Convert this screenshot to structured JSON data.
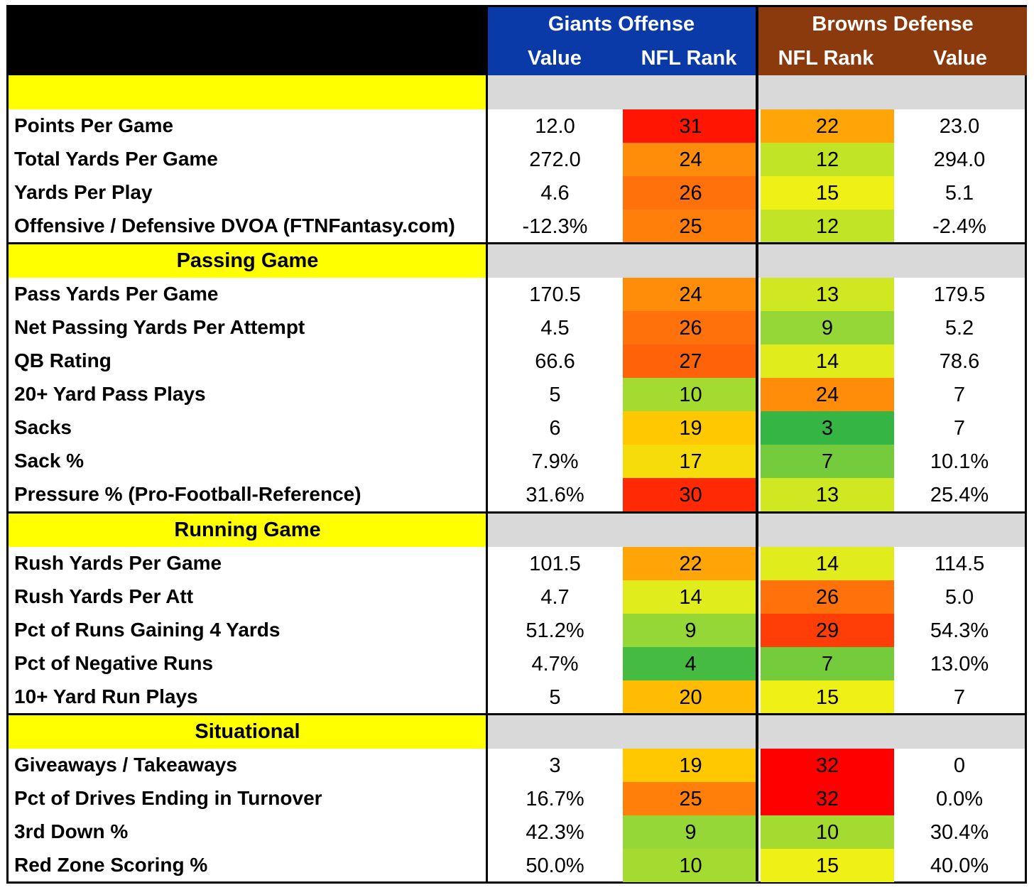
{
  "header": {
    "offense_title": "Giants Offense",
    "defense_title": "Browns Defense",
    "col_off_value": "Value",
    "col_off_rank": "NFL Rank",
    "col_def_rank": "NFL Rank",
    "col_def_value": "Value"
  },
  "colors": {
    "offense_header": "#0a3aa8",
    "defense_header": "#8b3a0e",
    "section_label": "#ffff00",
    "section_fill": "#d9d9d9"
  },
  "sections": [
    {
      "title": "",
      "rows": [
        {
          "label": "Points Per Game",
          "off_value": "12.0",
          "off_rank": "31",
          "def_rank": "22",
          "def_value": "23.0"
        },
        {
          "label": "Total Yards Per Game",
          "off_value": "272.0",
          "off_rank": "24",
          "def_rank": "12",
          "def_value": "294.0"
        },
        {
          "label": "Yards Per Play",
          "off_value": "4.6",
          "off_rank": "26",
          "def_rank": "15",
          "def_value": "5.1"
        },
        {
          "label": "Offensive / Defensive DVOA (FTNFantasy.com)",
          "off_value": "-12.3%",
          "off_rank": "25",
          "def_rank": "12",
          "def_value": "-2.4%"
        }
      ]
    },
    {
      "title": "Passing Game",
      "rows": [
        {
          "label": "Pass Yards Per Game",
          "off_value": "170.5",
          "off_rank": "24",
          "def_rank": "13",
          "def_value": "179.5"
        },
        {
          "label": "Net Passing Yards Per Attempt",
          "off_value": "4.5",
          "off_rank": "26",
          "def_rank": "9",
          "def_value": "5.2"
        },
        {
          "label": "QB Rating",
          "off_value": "66.6",
          "off_rank": "27",
          "def_rank": "14",
          "def_value": "78.6"
        },
        {
          "label": "20+ Yard Pass Plays",
          "off_value": "5",
          "off_rank": "10",
          "def_rank": "24",
          "def_value": "7"
        },
        {
          "label": "Sacks",
          "off_value": "6",
          "off_rank": "19",
          "def_rank": "3",
          "def_value": "7"
        },
        {
          "label": "Sack %",
          "off_value": "7.9%",
          "off_rank": "17",
          "def_rank": "7",
          "def_value": "10.1%"
        },
        {
          "label": "Pressure % (Pro-Football-Reference)",
          "off_value": "31.6%",
          "off_rank": "30",
          "def_rank": "13",
          "def_value": "25.4%"
        }
      ]
    },
    {
      "title": "Running Game",
      "rows": [
        {
          "label": "Rush Yards Per Game",
          "off_value": "101.5",
          "off_rank": "22",
          "def_rank": "14",
          "def_value": "114.5"
        },
        {
          "label": "Rush Yards Per Att",
          "off_value": "4.7",
          "off_rank": "14",
          "def_rank": "26",
          "def_value": "5.0"
        },
        {
          "label": "Pct of Runs Gaining 4 Yards",
          "off_value": "51.2%",
          "off_rank": "9",
          "def_rank": "29",
          "def_value": "54.3%"
        },
        {
          "label": "Pct of Negative Runs",
          "off_value": "4.7%",
          "off_rank": "4",
          "def_rank": "7",
          "def_value": "13.0%"
        },
        {
          "label": "10+ Yard Run Plays",
          "off_value": "5",
          "off_rank": "20",
          "def_rank": "15",
          "def_value": "7"
        }
      ]
    },
    {
      "title": "Situational",
      "rows": [
        {
          "label": "Giveaways / Takeaways",
          "off_value": "3",
          "off_rank": "19",
          "def_rank": "32",
          "def_value": "0"
        },
        {
          "label": "Pct of Drives Ending in Turnover",
          "off_value": "16.7%",
          "off_rank": "25",
          "def_rank": "32",
          "def_value": "0.0%"
        },
        {
          "label": "3rd Down %",
          "off_value": "42.3%",
          "off_rank": "9",
          "def_rank": "10",
          "def_value": "30.4%"
        },
        {
          "label": "Red Zone Scoring %",
          "off_value": "50.0%",
          "off_rank": "10",
          "def_rank": "15",
          "def_value": "40.0%"
        }
      ]
    }
  ]
}
